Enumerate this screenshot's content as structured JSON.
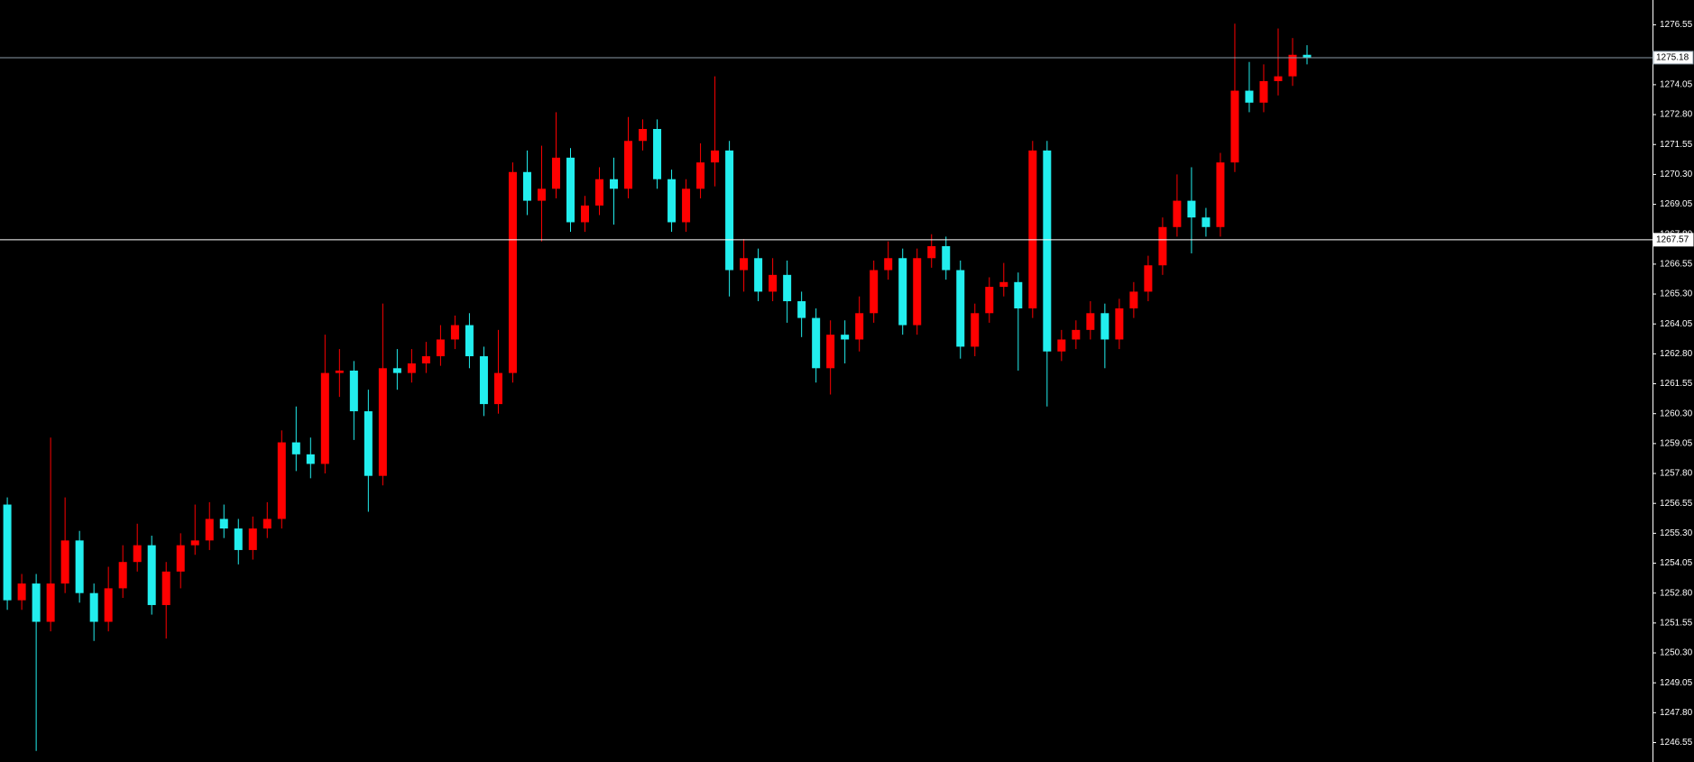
{
  "chart_data": {
    "type": "candlestick",
    "up_color": "#ff0000",
    "down_color": "#22eeee",
    "ylim": [
      1245.74,
      1277.59
    ],
    "yticks": [
      1276.55,
      {
        "value": 1275.3,
        "label": "1275.30"
      },
      1274.05,
      {
        "value": 1272.8,
        "label": "1272.80"
      },
      1271.55,
      {
        "value": 1270.3,
        "label": "1270.30"
      },
      1269.05,
      {
        "value": 1267.8,
        "label": "1267.80"
      },
      1266.55,
      {
        "value": 1265.3,
        "label": "1265.30"
      },
      1264.05,
      {
        "value": 1262.8,
        "label": "1262.80"
      },
      1261.55,
      {
        "value": 1260.3,
        "label": "1260.30"
      },
      1259.05,
      {
        "value": 1257.8,
        "label": "1257.80"
      },
      1256.55,
      {
        "value": 1255.3,
        "label": "1255.30"
      },
      1254.05,
      {
        "value": 1252.8,
        "label": "1252.80"
      },
      1251.55,
      {
        "value": 1250.3,
        "label": "1250.30"
      },
      1249.05,
      {
        "value": 1247.8,
        "label": "1247.80"
      },
      1246.55
    ],
    "lines": [
      {
        "value": 1275.18,
        "color": "#8a9aa6"
      },
      {
        "value": 1267.57,
        "color": "#ffffff"
      }
    ],
    "open": [
      1256.5,
      1252.5,
      1253.2,
      1251.6,
      1253.2,
      1255.0,
      1252.8,
      1251.6,
      1253.0,
      1254.1,
      1254.8,
      1252.3,
      1253.7,
      1254.8,
      1255.0,
      1255.9,
      1255.5,
      1254.6,
      1255.5,
      1255.9,
      1259.1,
      1258.6,
      1258.2,
      1262.0,
      1262.1,
      1260.4,
      1257.7,
      1262.2,
      1262.0,
      1262.4,
      1262.7,
      1263.4,
      1264.0,
      1262.7,
      1260.7,
      1262.0,
      1270.4,
      1269.2,
      1269.7,
      1271.0,
      1268.3,
      1269.0,
      1270.1,
      1269.7,
      1271.7,
      1272.2,
      1270.1,
      1268.3,
      1269.7,
      1270.8,
      1271.3,
      1266.3,
      1266.8,
      1265.4,
      1266.1,
      1265.0,
      1264.3,
      1262.2,
      1263.6,
      1263.4,
      1264.5,
      1266.3,
      1266.8,
      1264.0,
      1266.8,
      1267.3,
      1266.3,
      1263.1,
      1264.5,
      1265.6,
      1265.8,
      1264.7,
      1271.3,
      1262.9,
      1263.4,
      1263.8,
      1264.5,
      1263.4,
      1264.7,
      1265.4,
      1266.5,
      1268.1,
      1269.2,
      1268.5,
      1268.1,
      1270.8,
      1273.8,
      1273.3,
      1274.2,
      1274.4,
      1275.3
    ],
    "high": [
      1256.8,
      1253.6,
      1253.6,
      1259.3,
      1256.8,
      1255.4,
      1253.2,
      1253.9,
      1254.8,
      1255.7,
      1255.2,
      1254.1,
      1255.3,
      1256.5,
      1256.6,
      1256.5,
      1255.9,
      1256.0,
      1256.6,
      1259.6,
      1260.6,
      1259.3,
      1263.6,
      1263.0,
      1262.5,
      1261.3,
      1264.9,
      1263.0,
      1263.0,
      1263.3,
      1264.0,
      1264.4,
      1264.5,
      1263.1,
      1263.8,
      1270.8,
      1271.3,
      1271.5,
      1272.9,
      1271.4,
      1269.4,
      1270.6,
      1271.0,
      1272.7,
      1272.6,
      1272.6,
      1270.5,
      1270.1,
      1271.6,
      1274.4,
      1271.7,
      1267.6,
      1267.2,
      1266.8,
      1266.7,
      1265.4,
      1264.7,
      1264.2,
      1264.2,
      1265.2,
      1266.7,
      1267.5,
      1267.2,
      1267.2,
      1267.8,
      1267.7,
      1266.7,
      1264.9,
      1266.0,
      1266.6,
      1266.2,
      1271.7,
      1271.7,
      1263.8,
      1264.2,
      1265.0,
      1264.9,
      1265.1,
      1265.8,
      1266.9,
      1268.5,
      1270.3,
      1270.6,
      1268.9,
      1271.2,
      1276.6,
      1275.0,
      1274.9,
      1276.4,
      1276.0,
      1275.7
    ],
    "low": [
      1252.1,
      1252.1,
      1246.2,
      1251.2,
      1252.8,
      1252.4,
      1250.8,
      1251.2,
      1252.6,
      1253.7,
      1251.9,
      1250.9,
      1253.0,
      1254.4,
      1254.6,
      1255.1,
      1254.0,
      1254.2,
      1255.1,
      1255.5,
      1257.9,
      1257.6,
      1257.8,
      1261.0,
      1259.2,
      1256.2,
      1257.3,
      1261.3,
      1261.6,
      1262.0,
      1262.3,
      1263.0,
      1262.2,
      1260.2,
      1260.3,
      1261.6,
      1268.6,
      1267.5,
      1269.3,
      1267.9,
      1267.9,
      1268.6,
      1268.2,
      1269.3,
      1271.3,
      1269.7,
      1267.9,
      1267.9,
      1269.3,
      1269.8,
      1265.2,
      1265.4,
      1265.0,
      1265.0,
      1264.1,
      1263.5,
      1261.6,
      1261.1,
      1262.4,
      1262.9,
      1264.1,
      1265.9,
      1263.6,
      1263.6,
      1266.4,
      1265.9,
      1262.6,
      1262.7,
      1264.1,
      1265.2,
      1262.1,
      1264.3,
      1260.6,
      1262.5,
      1263.0,
      1263.4,
      1262.2,
      1263.0,
      1264.3,
      1265.0,
      1266.1,
      1267.7,
      1267.0,
      1267.7,
      1267.7,
      1270.4,
      1272.9,
      1272.9,
      1273.6,
      1274.0,
      1274.9
    ],
    "close": [
      1252.5,
      1253.2,
      1251.6,
      1253.2,
      1255.0,
      1252.8,
      1251.6,
      1253.0,
      1254.1,
      1254.8,
      1252.3,
      1253.7,
      1254.8,
      1255.0,
      1255.9,
      1255.5,
      1254.6,
      1255.5,
      1255.9,
      1259.1,
      1258.6,
      1258.2,
      1262.0,
      1262.1,
      1260.4,
      1257.7,
      1262.2,
      1262.0,
      1262.4,
      1262.7,
      1263.4,
      1264.0,
      1262.7,
      1260.7,
      1262.0,
      1270.4,
      1269.2,
      1269.7,
      1271.0,
      1268.3,
      1269.0,
      1270.1,
      1269.7,
      1271.7,
      1272.2,
      1270.1,
      1268.3,
      1269.7,
      1270.8,
      1271.3,
      1266.3,
      1266.8,
      1265.4,
      1266.1,
      1265.0,
      1264.3,
      1262.2,
      1263.6,
      1263.4,
      1264.5,
      1266.3,
      1266.8,
      1264.0,
      1266.8,
      1267.3,
      1266.3,
      1263.1,
      1264.5,
      1265.6,
      1265.8,
      1264.7,
      1271.3,
      1262.9,
      1263.4,
      1263.8,
      1264.5,
      1263.4,
      1264.7,
      1265.4,
      1266.5,
      1268.1,
      1269.2,
      1268.5,
      1268.1,
      1270.8,
      1273.8,
      1273.3,
      1274.2,
      1274.4,
      1275.3,
      1275.18
    ]
  }
}
